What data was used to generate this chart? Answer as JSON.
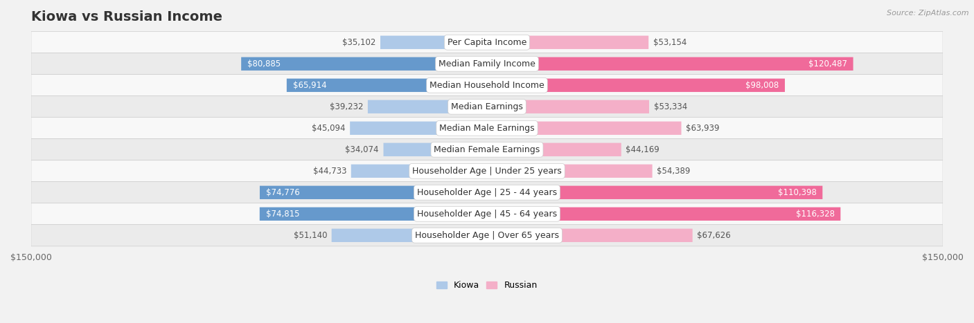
{
  "title": "Kiowa vs Russian Income",
  "source": "Source: ZipAtlas.com",
  "categories": [
    "Per Capita Income",
    "Median Family Income",
    "Median Household Income",
    "Median Earnings",
    "Median Male Earnings",
    "Median Female Earnings",
    "Householder Age | Under 25 years",
    "Householder Age | 25 - 44 years",
    "Householder Age | 45 - 64 years",
    "Householder Age | Over 65 years"
  ],
  "kiowa_values": [
    35102,
    80885,
    65914,
    39232,
    45094,
    34074,
    44733,
    74776,
    74815,
    51140
  ],
  "russian_values": [
    53154,
    120487,
    98008,
    53334,
    63939,
    44169,
    54389,
    110398,
    116328,
    67626
  ],
  "kiowa_color_light": "#aec9e8",
  "kiowa_color_strong": "#6699cc",
  "russian_color_light": "#f4afc8",
  "russian_color_strong": "#f06a9a",
  "axis_limit": 150000,
  "background_color": "#f2f2f2",
  "row_bg_light": "#f8f8f8",
  "row_bg_dark": "#ebebeb",
  "bar_height": 0.62,
  "label_fontsize": 9,
  "value_fontsize": 8.5,
  "title_fontsize": 14,
  "legend_fontsize": 9,
  "strong_kiowa_threshold": 60000,
  "strong_russian_threshold": 90000
}
